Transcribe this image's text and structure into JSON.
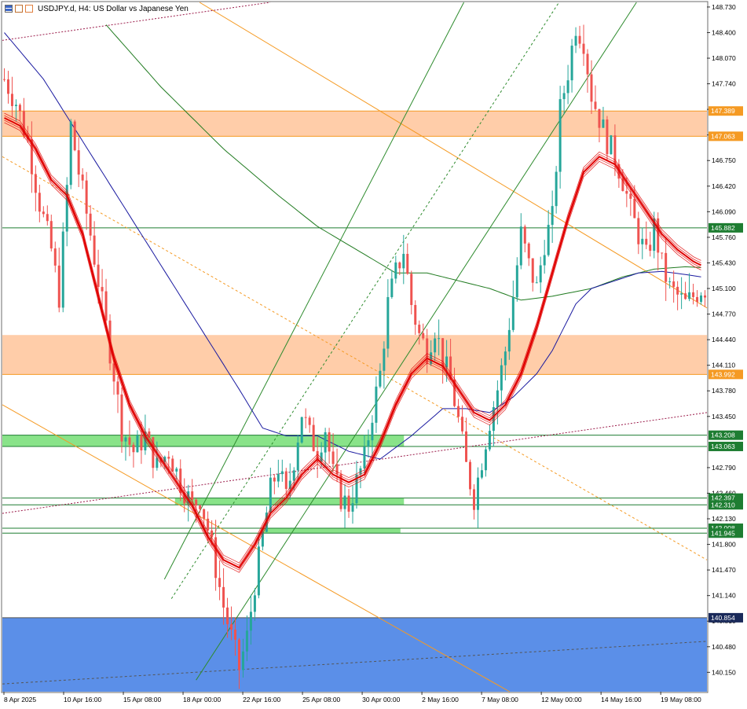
{
  "header": {
    "symbol": "USDJPY.d, H4:",
    "description": "US Dollar vs Japanese Yen"
  },
  "colors": {
    "bull": "#26a69a",
    "bear": "#ef5350",
    "ribbon": "#e00000",
    "ma_blue": "#1a1aa0",
    "ma_green": "#1f7a1f",
    "zone_orange": "#ffc8a0",
    "zone_green": "#7ce07c",
    "zone_blue": "#5b8fe8",
    "orange_line": "#f59a23",
    "green_line": "#2e8b2e",
    "maroon_dotted": "#9b1b4a",
    "tag_green": "#1e7d32",
    "tag_orange": "#f59a23",
    "tag_navy": "#1a2a5a"
  },
  "chart_data": {
    "type": "candlestick",
    "title": "USDJPY.d, H4: US Dollar vs Japanese Yen",
    "y_axis": {
      "range": [
        139.9,
        148.79
      ],
      "ticks": [
        "148.730",
        "148.400",
        "148.070",
        "147.740",
        "147.410",
        "147.080",
        "146.750",
        "146.420",
        "146.090",
        "145.760",
        "145.430",
        "145.100",
        "144.770",
        "144.440",
        "144.110",
        "143.780",
        "143.450",
        "142.790",
        "142.460",
        "142.130",
        "141.800",
        "141.470",
        "141.140",
        "140.810",
        "140.480",
        "140.150"
      ]
    },
    "x_axis": {
      "labels": [
        "8 Apr 2025",
        "10 Apr 16:00",
        "15 Apr 08:00",
        "18 Apr 00:00",
        "22 Apr 16:00",
        "25 Apr 08:00",
        "30 Apr 00:00",
        "2 May 16:00",
        "7 May 08:00",
        "12 May 00:00",
        "14 May 16:00",
        "19 May 08:00"
      ]
    },
    "price_tags": [
      {
        "value": "147.389",
        "style": "orange"
      },
      {
        "value": "147.063",
        "style": "orange"
      },
      {
        "value": "145.882",
        "style": "green"
      },
      {
        "value": "143.992",
        "style": "orange"
      },
      {
        "value": "143.208",
        "style": "green"
      },
      {
        "value": "143.063",
        "style": "green"
      },
      {
        "value": "142.397",
        "style": "green"
      },
      {
        "value": "142.310",
        "style": "green"
      },
      {
        "value": "142.008",
        "style": "green"
      },
      {
        "value": "141.945",
        "style": "green"
      },
      {
        "value": "140.854",
        "style": "navy"
      }
    ],
    "zones": [
      {
        "type": "orange",
        "y1": 147.389,
        "y2": 147.063
      },
      {
        "type": "orange",
        "y1": 144.5,
        "y2": 143.992
      },
      {
        "type": "green",
        "y1": 143.208,
        "y2": 143.063,
        "x_end": 0.57
      },
      {
        "type": "green",
        "y1": 142.397,
        "y2": 142.31,
        "x_start": 0.245,
        "x_end": 0.57
      },
      {
        "type": "green",
        "y1": 142.008,
        "y2": 141.945,
        "x_start": 0.37,
        "x_end": 0.565
      },
      {
        "type": "blue",
        "y1": 140.854,
        "y2": 139.9
      }
    ],
    "close_path": [
      [
        0,
        147.8
      ],
      [
        3,
        147.5
      ],
      [
        6,
        147.0
      ],
      [
        9,
        146.2
      ],
      [
        12,
        145.6
      ],
      [
        14,
        145.0
      ],
      [
        16,
        146.4
      ],
      [
        17,
        147.2
      ],
      [
        19,
        146.6
      ],
      [
        22,
        145.8
      ],
      [
        25,
        144.9
      ],
      [
        28,
        144.0
      ],
      [
        30,
        143.3
      ],
      [
        33,
        143.0
      ],
      [
        36,
        143.2
      ],
      [
        39,
        142.8
      ],
      [
        42,
        143.0
      ],
      [
        45,
        142.6
      ],
      [
        48,
        142.3
      ],
      [
        50,
        142.4
      ],
      [
        52,
        142.0
      ],
      [
        54,
        141.5
      ],
      [
        56,
        141.0
      ],
      [
        58,
        140.6
      ],
      [
        60,
        140.2
      ],
      [
        62,
        140.6
      ],
      [
        64,
        141.3
      ],
      [
        66,
        141.9
      ],
      [
        68,
        142.5
      ],
      [
        70,
        142.8
      ],
      [
        72,
        142.4
      ],
      [
        74,
        142.9
      ],
      [
        76,
        143.5
      ],
      [
        78,
        143.2
      ],
      [
        80,
        143.0
      ],
      [
        82,
        143.3
      ],
      [
        84,
        142.7
      ],
      [
        86,
        142.4
      ],
      [
        88,
        142.3
      ],
      [
        90,
        142.6
      ],
      [
        92,
        142.9
      ],
      [
        94,
        143.5
      ],
      [
        96,
        144.0
      ],
      [
        98,
        144.9
      ],
      [
        100,
        145.3
      ],
      [
        102,
        145.6
      ],
      [
        104,
        144.9
      ],
      [
        106,
        144.5
      ],
      [
        108,
        144.3
      ],
      [
        110,
        144.6
      ],
      [
        112,
        144.2
      ],
      [
        114,
        143.9
      ],
      [
        116,
        143.4
      ],
      [
        118,
        142.8
      ],
      [
        120,
        142.4
      ],
      [
        122,
        142.9
      ],
      [
        124,
        143.4
      ],
      [
        126,
        143.8
      ],
      [
        128,
        144.3
      ],
      [
        130,
        145.0
      ],
      [
        132,
        145.8
      ],
      [
        134,
        145.4
      ],
      [
        136,
        145.1
      ],
      [
        138,
        145.7
      ],
      [
        140,
        146.0
      ],
      [
        142,
        147.4
      ],
      [
        144,
        147.9
      ],
      [
        146,
        148.5
      ],
      [
        148,
        148.3
      ],
      [
        150,
        147.6
      ],
      [
        152,
        147.3
      ],
      [
        154,
        147.0
      ],
      [
        156,
        146.8
      ],
      [
        158,
        146.5
      ],
      [
        160,
        146.1
      ],
      [
        162,
        145.8
      ],
      [
        164,
        145.5
      ],
      [
        166,
        145.9
      ],
      [
        168,
        145.4
      ],
      [
        170,
        145.1
      ],
      [
        172,
        145.0
      ],
      [
        174,
        144.9
      ],
      [
        176,
        145.0
      ],
      [
        178,
        145.1
      ]
    ],
    "ema_ribbon": [
      [
        0,
        147.3
      ],
      [
        4,
        147.2
      ],
      [
        8,
        146.9
      ],
      [
        12,
        146.5
      ],
      [
        16,
        146.3
      ],
      [
        20,
        145.8
      ],
      [
        24,
        145.0
      ],
      [
        28,
        144.2
      ],
      [
        32,
        143.6
      ],
      [
        36,
        143.2
      ],
      [
        40,
        142.9
      ],
      [
        44,
        142.6
      ],
      [
        48,
        142.3
      ],
      [
        52,
        141.9
      ],
      [
        56,
        141.6
      ],
      [
        60,
        141.5
      ],
      [
        64,
        141.8
      ],
      [
        68,
        142.2
      ],
      [
        72,
        142.4
      ],
      [
        76,
        142.7
      ],
      [
        80,
        142.9
      ],
      [
        84,
        142.7
      ],
      [
        88,
        142.6
      ],
      [
        92,
        142.7
      ],
      [
        96,
        143.1
      ],
      [
        100,
        143.6
      ],
      [
        104,
        144.0
      ],
      [
        108,
        144.2
      ],
      [
        112,
        144.1
      ],
      [
        116,
        143.8
      ],
      [
        120,
        143.5
      ],
      [
        124,
        143.4
      ],
      [
        128,
        143.6
      ],
      [
        132,
        144.0
      ],
      [
        136,
        144.6
      ],
      [
        140,
        145.3
      ],
      [
        144,
        146.0
      ],
      [
        148,
        146.6
      ],
      [
        152,
        146.8
      ],
      [
        156,
        146.7
      ],
      [
        160,
        146.4
      ],
      [
        164,
        146.1
      ],
      [
        168,
        145.8
      ],
      [
        172,
        145.6
      ],
      [
        176,
        145.45
      ],
      [
        178,
        145.4
      ]
    ],
    "ma_blue": [
      [
        0,
        148.4
      ],
      [
        10,
        147.8
      ],
      [
        20,
        147.0
      ],
      [
        30,
        146.2
      ],
      [
        40,
        145.4
      ],
      [
        50,
        144.6
      ],
      [
        60,
        143.8
      ],
      [
        66,
        143.3
      ],
      [
        72,
        143.2
      ],
      [
        80,
        143.2
      ],
      [
        88,
        143.0
      ],
      [
        96,
        142.9
      ],
      [
        104,
        143.2
      ],
      [
        112,
        143.55
      ],
      [
        118,
        143.55
      ],
      [
        124,
        143.5
      ],
      [
        130,
        143.7
      ],
      [
        136,
        144.0
      ],
      [
        140,
        144.3
      ],
      [
        146,
        144.9
      ],
      [
        150,
        145.1
      ],
      [
        156,
        145.2
      ],
      [
        162,
        145.3
      ],
      [
        168,
        145.32
      ],
      [
        174,
        145.28
      ],
      [
        178,
        145.25
      ]
    ],
    "ma_green": [
      [
        26,
        148.5
      ],
      [
        40,
        147.7
      ],
      [
        56,
        146.9
      ],
      [
        70,
        146.3
      ],
      [
        80,
        145.9
      ],
      [
        90,
        145.6
      ],
      [
        100,
        145.3
      ],
      [
        108,
        145.3
      ],
      [
        116,
        145.2
      ],
      [
        124,
        145.1
      ],
      [
        132,
        144.95
      ],
      [
        140,
        145.0
      ],
      [
        150,
        145.1
      ],
      [
        158,
        145.25
      ],
      [
        166,
        145.35
      ],
      [
        174,
        145.38
      ],
      [
        178,
        145.37
      ]
    ]
  }
}
